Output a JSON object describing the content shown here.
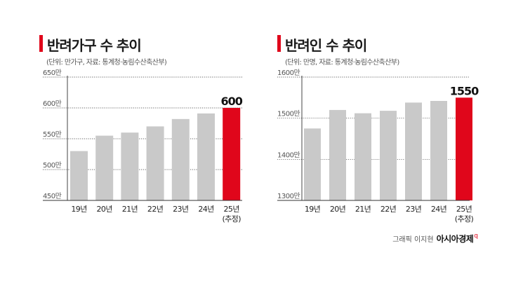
{
  "colors": {
    "accent": "#e0061b",
    "bar": "#c9c9c9",
    "highlight": "#e0061b",
    "grid": "#333333",
    "axis": "#555555"
  },
  "chart_data": [
    {
      "type": "bar",
      "title": "반려가구 수 추이",
      "subtitle": "(단위: 만가구, 자료: 통계청·농림수산축산부)",
      "categories": [
        "19년",
        "20년",
        "21년",
        "22년",
        "23년",
        "24년",
        "25년"
      ],
      "category_notes": [
        "",
        "",
        "",
        "",
        "",
        "",
        "(추정)"
      ],
      "values": [
        530,
        555,
        560,
        570,
        582,
        591,
        600
      ],
      "highlight_index": 6,
      "highlight_label": "600",
      "yticks": [
        450,
        500,
        550,
        600,
        650
      ],
      "ytick_labels": [
        "450만",
        "500만",
        "550만",
        "600만",
        "650만"
      ],
      "ylim": [
        450,
        650
      ]
    },
    {
      "type": "bar",
      "title": "반려인 수 추이",
      "subtitle": "(단위: 만명, 자료: 통계청·농림수산축산부)",
      "categories": [
        "19년",
        "20년",
        "21년",
        "22년",
        "23년",
        "24년",
        "25년"
      ],
      "category_notes": [
        "",
        "",
        "",
        "",
        "",
        "",
        "(추정)"
      ],
      "values": [
        1475,
        1520,
        1512,
        1518,
        1538,
        1542,
        1550
      ],
      "highlight_index": 6,
      "highlight_label": "1550",
      "yticks": [
        1300,
        1400,
        1500,
        1600
      ],
      "ytick_labels": [
        "1300만",
        "1400만",
        "1500만",
        "1600만"
      ],
      "ylim": [
        1300,
        1600
      ]
    }
  ],
  "credit": {
    "text": "그래픽 이지현",
    "brand": "아시아경제",
    "brand_mark": "q"
  }
}
